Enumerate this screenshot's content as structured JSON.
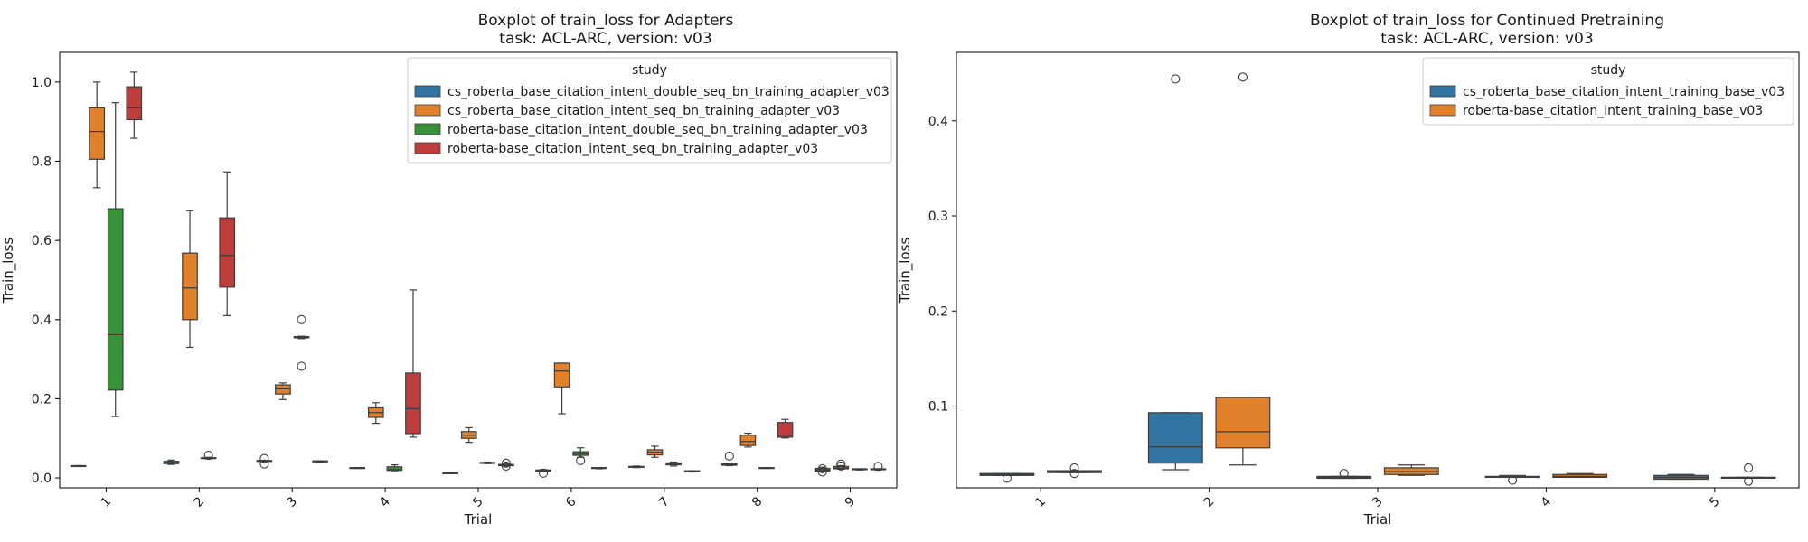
{
  "chart_data": [
    {
      "type": "boxplot",
      "title_line1": "Boxplot of train_loss for Adapters",
      "title_line2": "task: ACL-ARC, version: v03",
      "xlabel": "Trial",
      "ylabel": "Train_loss",
      "ylim": [
        -0.025,
        1.075
      ],
      "yticks": [
        0.0,
        0.2,
        0.4,
        0.6,
        0.8,
        1.0
      ],
      "ytick_labels": [
        "0.0",
        "0.2",
        "0.4",
        "0.6",
        "0.8",
        "1.0"
      ],
      "categories": [
        "1",
        "2",
        "3",
        "4",
        "5",
        "6",
        "7",
        "8",
        "9"
      ],
      "legend_title": "study",
      "legend_position": "top-right",
      "series": [
        {
          "name": "cs_roberta_base_citation_intent_double_seq_bn_training_adapter_v03",
          "color": "#3274a1",
          "boxes": [
            {
              "wl": 0.029,
              "q1": 0.029,
              "med": 0.03,
              "q3": 0.031,
              "wh": 0.031,
              "fliers": []
            },
            {
              "wl": 0.034,
              "q1": 0.036,
              "med": 0.039,
              "q3": 0.042,
              "wh": 0.045,
              "fliers": []
            },
            {
              "wl": 0.042,
              "q1": 0.042,
              "med": 0.043,
              "q3": 0.044,
              "wh": 0.044,
              "fliers": [
                0.049,
                0.035
              ]
            },
            {
              "wl": 0.024,
              "q1": 0.024,
              "med": 0.025,
              "q3": 0.026,
              "wh": 0.026,
              "fliers": []
            },
            {
              "wl": 0.011,
              "q1": 0.011,
              "med": 0.012,
              "q3": 0.013,
              "wh": 0.013,
              "fliers": []
            },
            {
              "wl": 0.017,
              "q1": 0.017,
              "med": 0.018,
              "q3": 0.02,
              "wh": 0.021,
              "fliers": [
                0.012
              ]
            },
            {
              "wl": 0.026,
              "q1": 0.027,
              "med": 0.028,
              "q3": 0.029,
              "wh": 0.03,
              "fliers": []
            },
            {
              "wl": 0.031,
              "q1": 0.032,
              "med": 0.034,
              "q3": 0.036,
              "wh": 0.037,
              "fliers": [
                0.055
              ]
            },
            {
              "wl": 0.016,
              "q1": 0.017,
              "med": 0.02,
              "q3": 0.024,
              "wh": 0.027,
              "fliers": [
                0.015,
                0.023
              ]
            }
          ]
        },
        {
          "name": "cs_roberta_base_citation_intent_seq_bn_training_adapter_v03",
          "color": "#e1812c",
          "boxes": [
            {
              "wl": 0.733,
              "q1": 0.805,
              "med": 0.875,
              "q3": 0.935,
              "wh": 1.0,
              "fliers": []
            },
            {
              "wl": 0.33,
              "q1": 0.4,
              "med": 0.48,
              "q3": 0.568,
              "wh": 0.675,
              "fliers": []
            },
            {
              "wl": 0.198,
              "q1": 0.212,
              "med": 0.225,
              "q3": 0.235,
              "wh": 0.24,
              "fliers": []
            },
            {
              "wl": 0.138,
              "q1": 0.153,
              "med": 0.165,
              "q3": 0.177,
              "wh": 0.19,
              "fliers": []
            },
            {
              "wl": 0.09,
              "q1": 0.1,
              "med": 0.108,
              "q3": 0.117,
              "wh": 0.127,
              "fliers": []
            },
            {
              "wl": 0.162,
              "q1": 0.23,
              "med": 0.27,
              "q3": 0.29,
              "wh": 0.29,
              "fliers": []
            },
            {
              "wl": 0.052,
              "q1": 0.058,
              "med": 0.065,
              "q3": 0.071,
              "wh": 0.08,
              "fliers": []
            },
            {
              "wl": 0.078,
              "q1": 0.082,
              "med": 0.092,
              "q3": 0.108,
              "wh": 0.113,
              "fliers": []
            },
            {
              "wl": 0.022,
              "q1": 0.023,
              "med": 0.025,
              "q3": 0.029,
              "wh": 0.031,
              "fliers": [
                0.035,
                0.03
              ]
            }
          ]
        },
        {
          "name": "roberta-base_citation_intent_double_seq_bn_training_adapter_v03",
          "color": "#3a923a",
          "boxes": [
            {
              "wl": 0.155,
              "q1": 0.222,
              "med": 0.362,
              "q3": 0.68,
              "wh": 0.948,
              "fliers": []
            },
            {
              "wl": 0.048,
              "q1": 0.049,
              "med": 0.05,
              "q3": 0.051,
              "wh": 0.052,
              "fliers": [
                0.057
              ]
            },
            {
              "wl": 0.352,
              "q1": 0.354,
              "med": 0.356,
              "q3": 0.357,
              "wh": 0.358,
              "fliers": [
                0.4,
                0.282
              ]
            },
            {
              "wl": 0.018,
              "q1": 0.019,
              "med": 0.021,
              "q3": 0.028,
              "wh": 0.033,
              "fliers": []
            },
            {
              "wl": 0.036,
              "q1": 0.037,
              "med": 0.038,
              "q3": 0.039,
              "wh": 0.04,
              "fliers": []
            },
            {
              "wl": 0.052,
              "q1": 0.057,
              "med": 0.061,
              "q3": 0.066,
              "wh": 0.076,
              "fliers": [
                0.044
              ]
            },
            {
              "wl": 0.03,
              "q1": 0.033,
              "med": 0.035,
              "q3": 0.038,
              "wh": 0.04,
              "fliers": []
            },
            {
              "wl": 0.024,
              "q1": 0.024,
              "med": 0.025,
              "q3": 0.026,
              "wh": 0.026,
              "fliers": []
            },
            {
              "wl": 0.02,
              "q1": 0.021,
              "med": 0.022,
              "q3": 0.023,
              "wh": 0.023,
              "fliers": []
            }
          ]
        },
        {
          "name": "roberta-base_citation_intent_seq_bn_training_adapter_v03",
          "color": "#c03d3e",
          "boxes": [
            {
              "wl": 0.858,
              "q1": 0.905,
              "med": 0.935,
              "q3": 0.988,
              "wh": 1.025,
              "fliers": []
            },
            {
              "wl": 0.41,
              "q1": 0.482,
              "med": 0.562,
              "q3": 0.657,
              "wh": 0.773,
              "fliers": []
            },
            {
              "wl": 0.04,
              "q1": 0.041,
              "med": 0.042,
              "q3": 0.043,
              "wh": 0.043,
              "fliers": []
            },
            {
              "wl": 0.103,
              "q1": 0.112,
              "med": 0.175,
              "q3": 0.265,
              "wh": 0.475,
              "fliers": []
            },
            {
              "wl": 0.03,
              "q1": 0.031,
              "med": 0.032,
              "q3": 0.034,
              "wh": 0.035,
              "fliers": [
                0.037,
                0.03
              ]
            },
            {
              "wl": 0.023,
              "q1": 0.024,
              "med": 0.025,
              "q3": 0.026,
              "wh": 0.026,
              "fliers": []
            },
            {
              "wl": 0.015,
              "q1": 0.016,
              "med": 0.017,
              "q3": 0.018,
              "wh": 0.018,
              "fliers": []
            },
            {
              "wl": 0.101,
              "q1": 0.103,
              "med": 0.108,
              "q3": 0.14,
              "wh": 0.148,
              "fliers": []
            },
            {
              "wl": 0.02,
              "q1": 0.021,
              "med": 0.022,
              "q3": 0.023,
              "wh": 0.023,
              "fliers": [
                0.029
              ]
            }
          ]
        }
      ]
    },
    {
      "type": "boxplot",
      "title_line1": "Boxplot of train_loss for Continued Pretraining",
      "title_line2": "task: ACL-ARC, version: v03",
      "xlabel": "Trial",
      "ylabel": "Train_loss",
      "ylim": [
        0.014,
        0.472
      ],
      "yticks": [
        0.1,
        0.2,
        0.3,
        0.4
      ],
      "ytick_labels": [
        "0.1",
        "0.2",
        "0.3",
        "0.4"
      ],
      "categories": [
        "1",
        "2",
        "3",
        "4",
        "5"
      ],
      "legend_title": "study",
      "legend_position": "top-right",
      "series": [
        {
          "name": "cs_roberta_base_citation_intent_training_base_v03",
          "color": "#3274a1",
          "boxes": [
            {
              "wl": 0.027,
              "q1": 0.027,
              "med": 0.028,
              "q3": 0.029,
              "wh": 0.029,
              "fliers": [
                0.024
              ]
            },
            {
              "wl": 0.033,
              "q1": 0.04,
              "med": 0.057,
              "q3": 0.093,
              "wh": 0.093,
              "fliers": [
                0.444
              ]
            },
            {
              "wl": 0.024,
              "q1": 0.024,
              "med": 0.025,
              "q3": 0.026,
              "wh": 0.026,
              "fliers": [
                0.029
              ]
            },
            {
              "wl": 0.025,
              "q1": 0.025,
              "med": 0.025,
              "q3": 0.026,
              "wh": 0.027,
              "fliers": [
                0.022
              ]
            },
            {
              "wl": 0.023,
              "q1": 0.023,
              "med": 0.025,
              "q3": 0.027,
              "wh": 0.028,
              "fliers": []
            }
          ]
        },
        {
          "name": "roberta-base_citation_intent_training_base_v03",
          "color": "#e1812c",
          "boxes": [
            {
              "wl": 0.03,
              "q1": 0.03,
              "med": 0.031,
              "q3": 0.032,
              "wh": 0.032,
              "fliers": [
                0.035,
                0.029
              ]
            },
            {
              "wl": 0.038,
              "q1": 0.056,
              "med": 0.073,
              "q3": 0.109,
              "wh": 0.109,
              "fliers": [
                0.446
              ]
            },
            {
              "wl": 0.027,
              "q1": 0.028,
              "med": 0.031,
              "q3": 0.035,
              "wh": 0.038,
              "fliers": []
            },
            {
              "wl": 0.025,
              "q1": 0.025,
              "med": 0.026,
              "q3": 0.028,
              "wh": 0.029,
              "fliers": []
            },
            {
              "wl": 0.025,
              "q1": 0.025,
              "med": 0.025,
              "q3": 0.025,
              "wh": 0.025,
              "fliers": [
                0.035,
                0.021
              ]
            }
          ]
        }
      ]
    }
  ]
}
